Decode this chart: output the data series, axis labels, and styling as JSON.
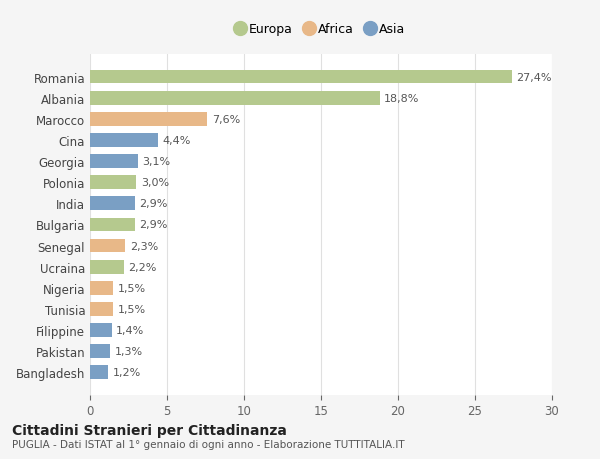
{
  "categories": [
    "Romania",
    "Albania",
    "Marocco",
    "Cina",
    "Georgia",
    "Polonia",
    "India",
    "Bulgaria",
    "Senegal",
    "Ucraina",
    "Nigeria",
    "Tunisia",
    "Filippine",
    "Pakistan",
    "Bangladesh"
  ],
  "values": [
    27.4,
    18.8,
    7.6,
    4.4,
    3.1,
    3.0,
    2.9,
    2.9,
    2.3,
    2.2,
    1.5,
    1.5,
    1.4,
    1.3,
    1.2
  ],
  "continents": [
    "Europa",
    "Europa",
    "Africa",
    "Asia",
    "Asia",
    "Europa",
    "Asia",
    "Europa",
    "Africa",
    "Europa",
    "Africa",
    "Africa",
    "Asia",
    "Asia",
    "Asia"
  ],
  "colors": {
    "Europa": "#b5c98e",
    "Africa": "#e8b888",
    "Asia": "#7a9fc4"
  },
  "labels": [
    "27,4%",
    "18,8%",
    "7,6%",
    "4,4%",
    "3,1%",
    "3,0%",
    "2,9%",
    "2,9%",
    "2,3%",
    "2,2%",
    "1,5%",
    "1,5%",
    "1,4%",
    "1,3%",
    "1,2%"
  ],
  "xlim": [
    0,
    30
  ],
  "xticks": [
    0,
    5,
    10,
    15,
    20,
    25,
    30
  ],
  "title": "Cittadini Stranieri per Cittadinanza",
  "subtitle": "PUGLIA - Dati ISTAT al 1° gennaio di ogni anno - Elaborazione TUTTITALIA.IT",
  "legend_labels": [
    "Europa",
    "Africa",
    "Asia"
  ],
  "background_color": "#f5f5f5",
  "bar_background": "#ffffff",
  "grid_color": "#e0e0e0"
}
